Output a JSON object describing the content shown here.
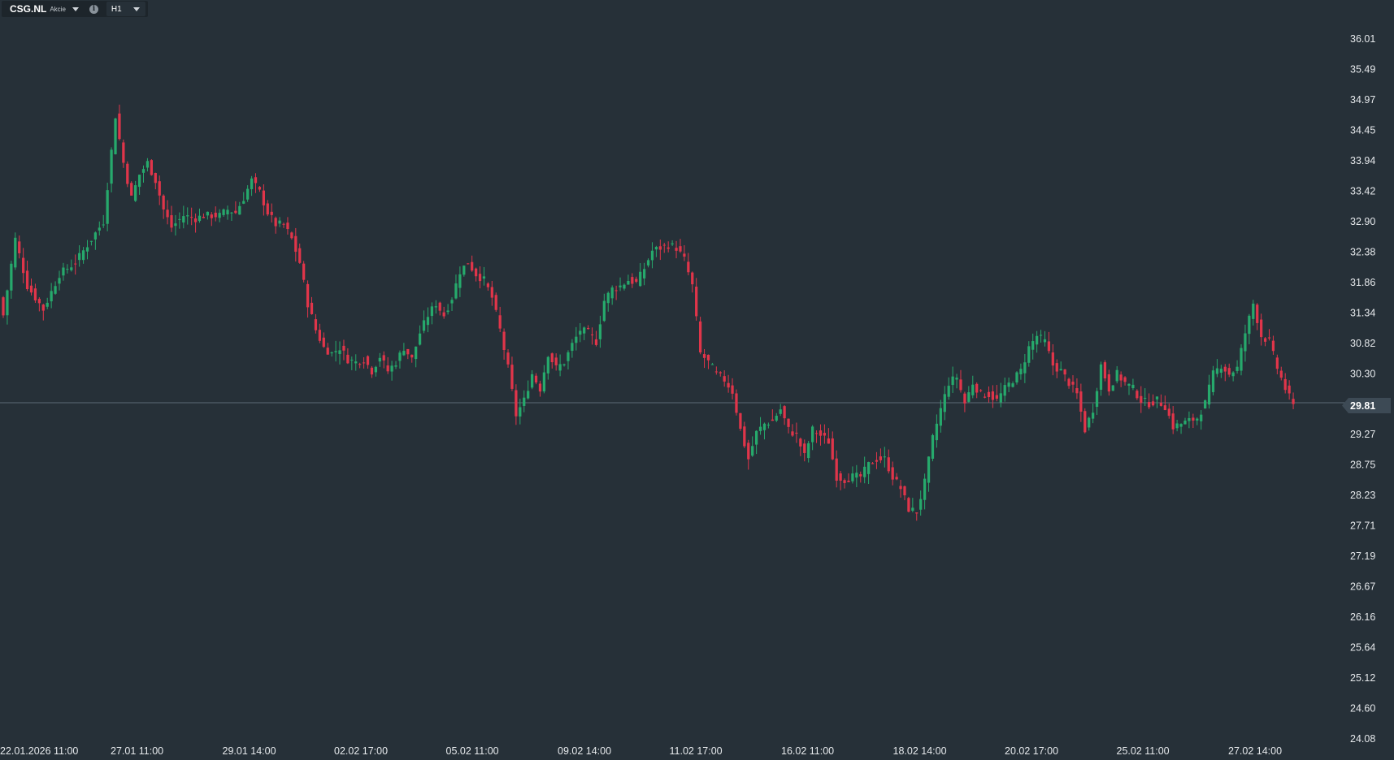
{
  "toolbar": {
    "symbol": "CSG.NL",
    "instrument_type": "Akcie",
    "timeframe": "H1"
  },
  "colors": {
    "up": "#26a96c",
    "down": "#e0354a",
    "background": "#263038",
    "price_line": "#5c6a76"
  },
  "chart_data": {
    "type": "candlestick",
    "ylim": [
      24.08,
      36.01
    ],
    "y_ticks": [
      "36.01",
      "35.49",
      "34.97",
      "34.45",
      "33.94",
      "33.42",
      "32.90",
      "32.38",
      "31.86",
      "31.34",
      "30.82",
      "30.30",
      "29.81",
      "29.27",
      "28.75",
      "28.23",
      "27.71",
      "27.19",
      "26.67",
      "26.16",
      "25.64",
      "25.12",
      "24.60",
      "24.08"
    ],
    "x_labels": [
      "22.01.2026 11:00",
      "27.01 11:00",
      "29.01 14:00",
      "02.02 17:00",
      "05.02 11:00",
      "09.02 14:00",
      "11.02 17:00",
      "16.02 11:00",
      "18.02 14:00",
      "20.02 17:00",
      "25.02 11:00",
      "27.02 14:00"
    ],
    "current_price": "29.81",
    "close_path": [
      [
        0,
        31.3
      ],
      [
        3,
        32.6
      ],
      [
        6,
        31.8
      ],
      [
        10,
        31.4
      ],
      [
        14,
        32.0
      ],
      [
        18,
        32.2
      ],
      [
        22,
        32.6
      ],
      [
        25,
        32.9
      ],
      [
        28,
        34.7
      ],
      [
        30,
        33.9
      ],
      [
        32,
        33.3
      ],
      [
        34,
        33.7
      ],
      [
        36,
        33.9
      ],
      [
        38,
        33.6
      ],
      [
        40,
        33.1
      ],
      [
        42,
        32.8
      ],
      [
        45,
        33.0
      ],
      [
        48,
        32.95
      ],
      [
        50,
        33.0
      ],
      [
        52,
        33.0
      ],
      [
        54,
        33.0
      ],
      [
        56,
        33.1
      ],
      [
        58,
        33.05
      ],
      [
        60,
        33.3
      ],
      [
        62,
        33.6
      ],
      [
        64,
        33.4
      ],
      [
        66,
        33.05
      ],
      [
        68,
        32.85
      ],
      [
        70,
        32.85
      ],
      [
        72,
        32.6
      ],
      [
        74,
        32.2
      ],
      [
        76,
        31.5
      ],
      [
        78,
        31.05
      ],
      [
        80,
        30.75
      ],
      [
        82,
        30.65
      ],
      [
        84,
        30.75
      ],
      [
        86,
        30.55
      ],
      [
        88,
        30.5
      ],
      [
        90,
        30.55
      ],
      [
        92,
        30.35
      ],
      [
        94,
        30.6
      ],
      [
        96,
        30.35
      ],
      [
        98,
        30.5
      ],
      [
        100,
        30.75
      ],
      [
        102,
        30.55
      ],
      [
        104,
        31.0
      ],
      [
        106,
        31.3
      ],
      [
        108,
        31.5
      ],
      [
        110,
        31.3
      ],
      [
        112,
        31.6
      ],
      [
        114,
        32.05
      ],
      [
        116,
        32.2
      ],
      [
        118,
        32.0
      ],
      [
        120,
        31.9
      ],
      [
        122,
        31.6
      ],
      [
        124,
        31.05
      ],
      [
        126,
        30.4
      ],
      [
        128,
        29.6
      ],
      [
        130,
        29.85
      ],
      [
        132,
        30.3
      ],
      [
        134,
        30.05
      ],
      [
        136,
        30.65
      ],
      [
        138,
        30.4
      ],
      [
        140,
        30.5
      ],
      [
        142,
        30.8
      ],
      [
        144,
        31.05
      ],
      [
        146,
        31.0
      ],
      [
        148,
        30.85
      ],
      [
        150,
        31.55
      ],
      [
        152,
        31.75
      ],
      [
        154,
        31.8
      ],
      [
        156,
        31.9
      ],
      [
        158,
        31.85
      ],
      [
        160,
        32.1
      ],
      [
        162,
        32.4
      ],
      [
        164,
        32.45
      ],
      [
        166,
        32.5
      ],
      [
        168,
        32.45
      ],
      [
        170,
        32.25
      ],
      [
        172,
        31.8
      ],
      [
        174,
        30.65
      ],
      [
        176,
        30.5
      ],
      [
        178,
        30.3
      ],
      [
        180,
        30.2
      ],
      [
        182,
        30.0
      ],
      [
        184,
        29.35
      ],
      [
        186,
        28.85
      ],
      [
        188,
        29.3
      ],
      [
        190,
        29.45
      ],
      [
        192,
        29.5
      ],
      [
        194,
        29.7
      ],
      [
        196,
        29.35
      ],
      [
        198,
        29.25
      ],
      [
        200,
        28.9
      ],
      [
        202,
        29.35
      ],
      [
        204,
        29.25
      ],
      [
        206,
        29.15
      ],
      [
        208,
        28.55
      ],
      [
        210,
        28.5
      ],
      [
        212,
        28.55
      ],
      [
        214,
        28.55
      ],
      [
        216,
        28.75
      ],
      [
        218,
        28.85
      ],
      [
        220,
        28.85
      ],
      [
        222,
        28.55
      ],
      [
        224,
        28.35
      ],
      [
        226,
        28.0
      ],
      [
        228,
        27.95
      ],
      [
        230,
        28.45
      ],
      [
        232,
        29.2
      ],
      [
        234,
        29.7
      ],
      [
        236,
        30.15
      ],
      [
        238,
        30.25
      ],
      [
        240,
        29.8
      ],
      [
        242,
        30.15
      ],
      [
        244,
        29.95
      ],
      [
        246,
        29.95
      ],
      [
        248,
        29.85
      ],
      [
        250,
        30.05
      ],
      [
        252,
        30.2
      ],
      [
        254,
        30.35
      ],
      [
        256,
        30.75
      ],
      [
        258,
        30.95
      ],
      [
        260,
        30.85
      ],
      [
        262,
        30.45
      ],
      [
        264,
        30.35
      ],
      [
        266,
        30.15
      ],
      [
        268,
        29.95
      ],
      [
        270,
        29.35
      ],
      [
        272,
        29.7
      ],
      [
        274,
        30.45
      ],
      [
        276,
        30.05
      ],
      [
        278,
        30.3
      ],
      [
        280,
        30.15
      ],
      [
        282,
        30.05
      ],
      [
        284,
        29.85
      ],
      [
        286,
        29.8
      ],
      [
        288,
        29.85
      ],
      [
        290,
        29.75
      ],
      [
        292,
        29.4
      ],
      [
        294,
        29.45
      ],
      [
        296,
        29.5
      ],
      [
        298,
        29.55
      ],
      [
        300,
        29.8
      ],
      [
        302,
        30.3
      ],
      [
        304,
        30.45
      ],
      [
        306,
        30.3
      ],
      [
        308,
        30.4
      ],
      [
        310,
        31.0
      ],
      [
        312,
        31.5
      ],
      [
        314,
        30.95
      ],
      [
        316,
        30.85
      ],
      [
        318,
        30.4
      ],
      [
        320,
        30.05
      ],
      [
        322,
        29.75
      ]
    ]
  }
}
